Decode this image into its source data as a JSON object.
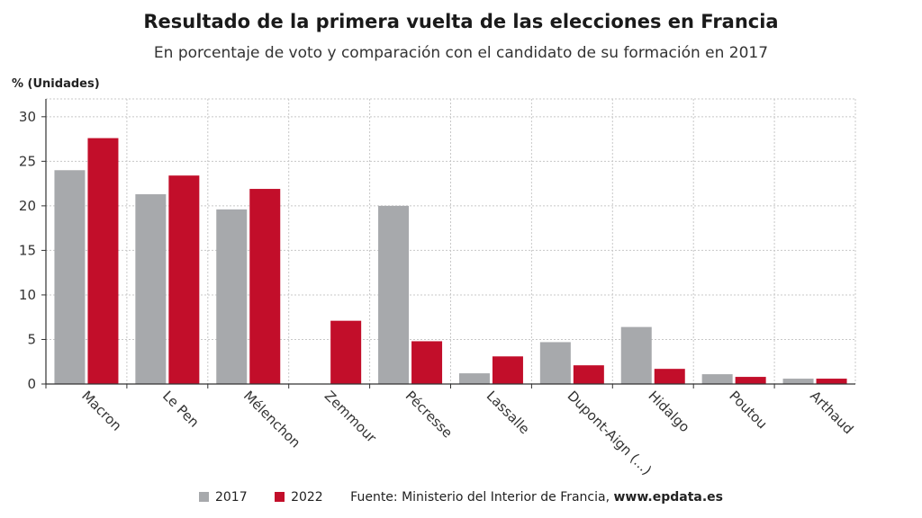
{
  "colors": {
    "s2017": "#a7a9ac",
    "s2022": "#c20e2a",
    "grid": "#c8c8c8",
    "axis": "#333333"
  },
  "source": {
    "prefix": "Fuente: Ministerio del Interior de Francia,",
    "link": "www.epdata.es"
  },
  "chart_data": {
    "type": "bar",
    "title": "Resultado de la primera vuelta de las elecciones en Francia",
    "subtitle": "En porcentaje de voto y comparación con el candidato de su formación en 2017",
    "ylabel": "% (Unidades)",
    "xlabel": "",
    "ylim": [
      0,
      32
    ],
    "yticks": [
      0,
      5,
      10,
      15,
      20,
      25,
      30
    ],
    "grid": true,
    "legend_position": "bottom",
    "categories": [
      "Macron",
      "Le Pen",
      "Mélenchon",
      "Zemmour",
      "Pécresse",
      "Lassalle",
      "Dupont-Aign (...)",
      "Hidalgo",
      "Poutou",
      "Arthaud"
    ],
    "series": [
      {
        "name": "2017",
        "values": [
          24.0,
          21.3,
          19.6,
          null,
          20.0,
          1.2,
          4.7,
          6.4,
          1.1,
          0.6
        ]
      },
      {
        "name": "2022",
        "values": [
          27.6,
          23.4,
          21.9,
          7.1,
          4.8,
          3.1,
          2.1,
          1.7,
          0.8,
          0.6
        ]
      }
    ]
  }
}
